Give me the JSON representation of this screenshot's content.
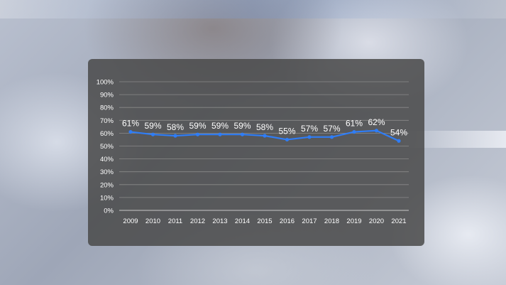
{
  "chart_data": {
    "type": "line",
    "x": [
      "2009",
      "2010",
      "2011",
      "2012",
      "2013",
      "2014",
      "2015",
      "2016",
      "2017",
      "2018",
      "2019",
      "2020",
      "2021"
    ],
    "series": [
      {
        "values": [
          61,
          59,
          58,
          59,
          59,
          59,
          58,
          55,
          57,
          57,
          61,
          62,
          54
        ]
      }
    ],
    "data_labels": [
      "61%",
      "59%",
      "58%",
      "59%",
      "59%",
      "59%",
      "58%",
      "55%",
      "57%",
      "57%",
      "61%",
      "62%",
      "54%"
    ],
    "y_ticks": [
      "0%",
      "10%",
      "20%",
      "30%",
      "40%",
      "50%",
      "60%",
      "70%",
      "80%",
      "90%",
      "100%"
    ],
    "ylim": [
      0,
      100
    ],
    "grid": true,
    "line_color": "#2f7df6",
    "panel_color": "#4a4a4a"
  }
}
